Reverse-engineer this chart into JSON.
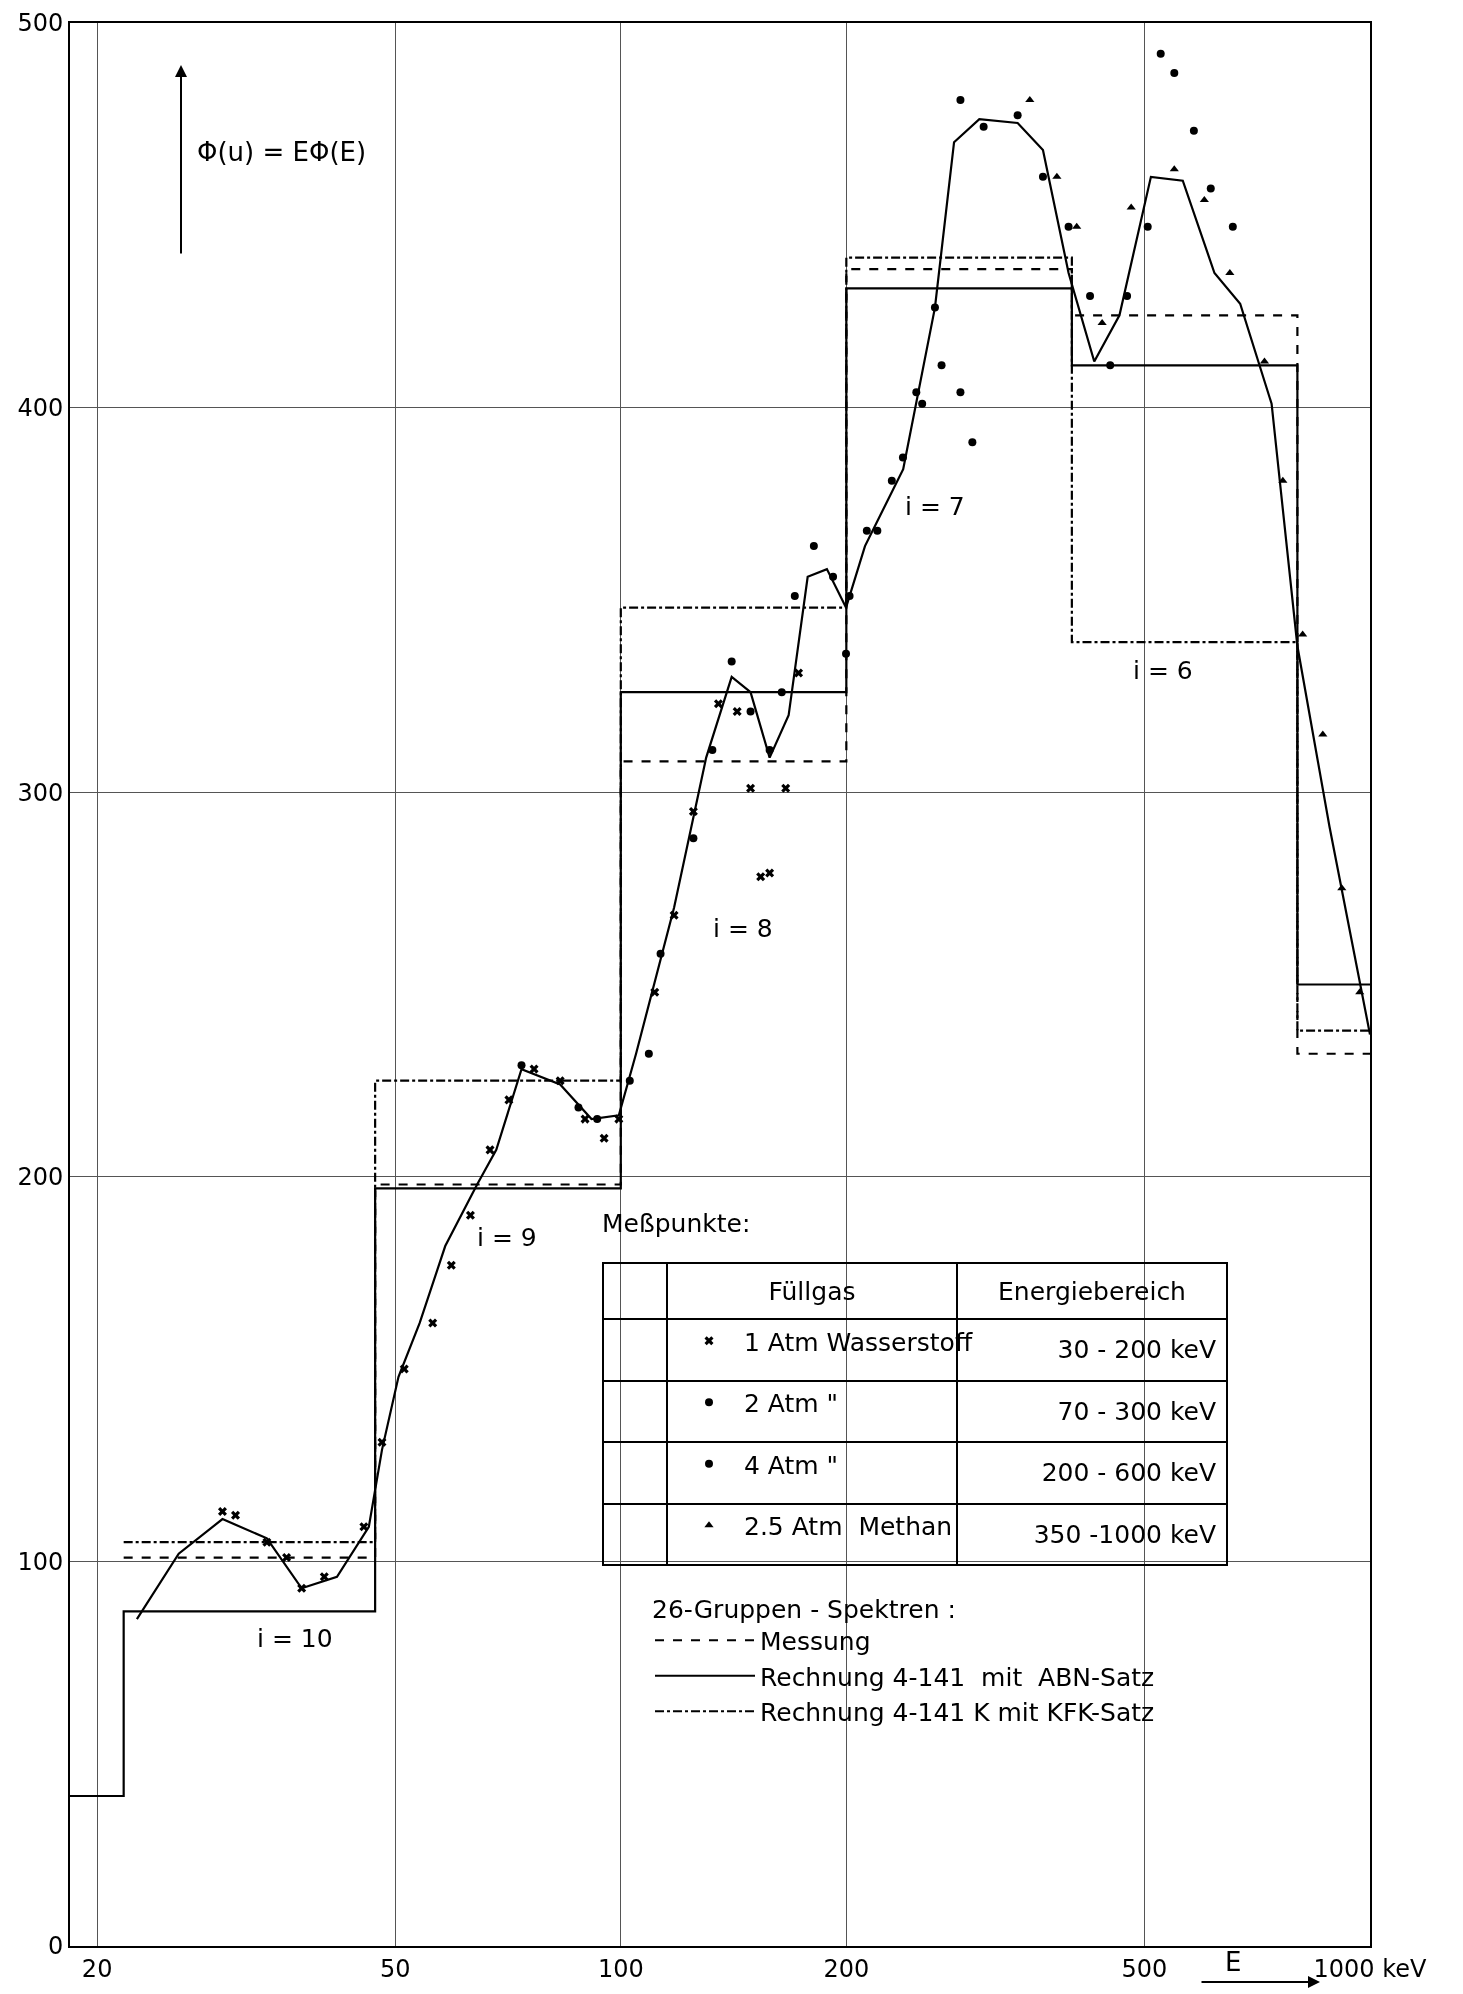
{
  "chart_data": {
    "type": "line",
    "ylabel": "Φ(u) = EΦ(E)",
    "xlabel": "E",
    "legend_title": "26-Gruppen - Spektren :",
    "xlim": [
      18.4,
      1000
    ],
    "xticks": [
      20,
      50,
      100,
      200,
      500,
      {
        "value": 1000,
        "label": "1000 keV"
      }
    ],
    "ylim": [
      0,
      500
    ],
    "yticks": [
      0,
      100,
      200,
      300,
      400,
      500
    ],
    "log": "x",
    "grid": true,
    "legend": "bottom right",
    "annotations": [
      "i = 10",
      "i = 9",
      "i = 8",
      "i = 7",
      "i = 6",
      "Meßpunkte:",
      "Füllgas",
      "Energiebereich",
      "30 - 200 keV",
      "70 - 300 keV",
      "200 - 600 keV",
      "350 -1000 keV"
    ],
    "series": [
      {
        "color": "#000000",
        "line_style": "solid",
        "x": [
          22.6,
          25.7,
          29.4,
          33.7,
          37.5,
          41.8,
          46.1,
          48.0,
          50.5,
          53.9,
          58.3,
          64.3,
          68.2,
          73.7,
          83.0,
          91.4,
          99.4,
          104.8,
          117.8,
          130,
          140.6,
          149,
          158,
          167.5,
          177.6,
          188.4,
          199.8,
          211.8,
          238.2,
          262.6,
          278.5,
          301,
          338.6,
          366,
          396,
          428.5,
          463,
          510,
          562.5,
          620,
          671,
          739,
          800,
          883,
          1000
        ],
        "values": [
          85,
          102,
          111,
          106,
          93,
          96,
          109,
          129,
          148,
          162,
          182,
          198,
          207,
          228,
          224,
          215,
          216,
          232,
          270,
          309,
          330,
          326,
          309,
          320,
          356,
          358,
          348,
          364,
          384,
          426,
          469,
          475,
          474,
          467,
          435,
          412,
          424,
          460,
          459,
          435,
          427,
          401,
          338,
          291,
          237
        ]
      },
      {
        "type": "step",
        "name": "Messung",
        "color": "#000000",
        "line_style": "dashed",
        "x": [
          21.7,
          47,
          100,
          200,
          400,
          800,
          1000
        ],
        "values": [
          101,
          198,
          308,
          436,
          424,
          232,
          232
        ]
      },
      {
        "type": "step",
        "name": "Rechnung 4-141  mit  ABN-Satz",
        "color": "#000000",
        "line_style": "solid",
        "x": [
          18.4,
          21.7,
          47,
          100,
          200,
          400,
          800,
          1000
        ],
        "values": [
          39,
          87,
          197,
          326,
          431,
          411,
          250,
          250
        ]
      },
      {
        "type": "step",
        "name": "Rechnung 4-141 K mit KFK-Satz",
        "color": "#000000",
        "line_style": "dashdot",
        "x": [
          21.7,
          47,
          100,
          200,
          400,
          800,
          1000
        ],
        "values": [
          105,
          225,
          348,
          439,
          339,
          238,
          238
        ]
      },
      {
        "type": "scatter",
        "name": "1 Atm Wasserstoff",
        "color": "#000000",
        "marker": "cross",
        "x": [
          29.4,
          30.6,
          33.7,
          35.8,
          37.5,
          40.2,
          45.4,
          48,
          51.4,
          56.1,
          59.4,
          63,
          66.9,
          70.9,
          76.6,
          83,
          89.6,
          95,
          99.4,
          111,
          117.8,
          125,
          135,
          143,
          149,
          153.7,
          158,
          166,
          172.7
        ],
        "values": [
          113,
          112,
          105,
          101,
          93,
          96,
          109,
          131,
          150,
          162,
          177,
          190,
          207,
          220,
          228,
          225,
          215,
          210,
          215,
          248,
          268,
          295,
          323,
          321,
          301,
          278,
          279,
          301,
          331
        ]
      },
      {
        "type": "scatter",
        "name": "2 Atm \"",
        "color": "#000000",
        "marker": "circle",
        "x": [
          73.7,
          87.8,
          93,
          102.8,
          109,
          113,
          125,
          132.5,
          140.6,
          149,
          158,
          164,
          170.7,
          181,
          192,
          199.8,
          220,
          238,
          252.5,
          268,
          284,
          294.6
        ],
        "values": [
          229,
          218,
          215,
          225,
          232,
          258,
          288,
          311,
          334,
          321,
          311,
          326,
          351,
          364,
          356,
          336,
          368,
          387,
          401,
          411,
          404,
          391
        ]
      },
      {
        "type": "scatter",
        "name": "4 Atm \"",
        "color": "#000000",
        "marker": "circle",
        "x": [
          202,
          213,
          230,
          248,
          262.6,
          284,
          305,
          338.6,
          366,
          396,
          423,
          450,
          474,
          505,
          525.6,
          548,
          582,
          613,
          656
        ],
        "values": [
          351,
          368,
          381,
          404,
          426,
          480,
          473,
          476,
          460,
          447,
          429,
          411,
          429,
          447,
          492,
          487,
          472,
          457,
          447
        ]
      },
      {
        "type": "scatter",
        "name": "2.5 Atm  Methan",
        "color": "#000000",
        "marker": "triangle",
        "x": [
          351.5,
          382,
          406,
          439,
          480,
          548,
          601,
          650,
          723,
          765,
          813,
          865,
          917,
          969
        ],
        "values": [
          480,
          460,
          447,
          422,
          452,
          462,
          454,
          435,
          412,
          381,
          341,
          315,
          275,
          248
        ]
      }
    ]
  }
}
